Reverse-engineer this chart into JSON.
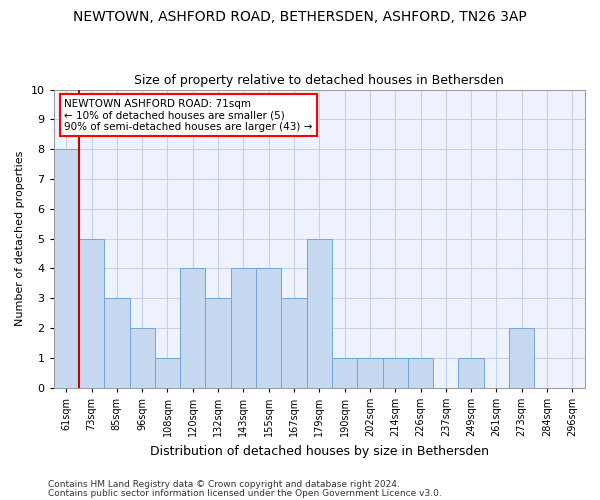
{
  "title": "NEWTOWN, ASHFORD ROAD, BETHERSDEN, ASHFORD, TN26 3AP",
  "subtitle": "Size of property relative to detached houses in Bethersden",
  "xlabel": "Distribution of detached houses by size in Bethersden",
  "ylabel": "Number of detached properties",
  "categories": [
    "61sqm",
    "73sqm",
    "85sqm",
    "96sqm",
    "108sqm",
    "120sqm",
    "132sqm",
    "143sqm",
    "155sqm",
    "167sqm",
    "179sqm",
    "190sqm",
    "202sqm",
    "214sqm",
    "226sqm",
    "237sqm",
    "249sqm",
    "261sqm",
    "273sqm",
    "284sqm",
    "296sqm"
  ],
  "values": [
    8,
    5,
    3,
    2,
    1,
    4,
    3,
    4,
    4,
    3,
    5,
    1,
    1,
    1,
    1,
    0,
    1,
    0,
    2,
    0,
    0
  ],
  "bar_color": "#c5d8f0",
  "bar_edge_color": "#6fa8d4",
  "highlight_color": "#cc0000",
  "ylim": [
    0,
    10
  ],
  "yticks": [
    0,
    1,
    2,
    3,
    4,
    5,
    6,
    7,
    8,
    9,
    10
  ],
  "annotation_title": "NEWTOWN ASHFORD ROAD: 71sqm",
  "annotation_line1": "← 10% of detached houses are smaller (5)",
  "annotation_line2": "90% of semi-detached houses are larger (43) →",
  "footer1": "Contains HM Land Registry data © Crown copyright and database right 2024.",
  "footer2": "Contains public sector information licensed under the Open Government Licence v3.0.",
  "bg_color": "#eef2fc",
  "grid_color": "#c8cfe8",
  "title_fontsize": 10,
  "subtitle_fontsize": 9,
  "xlabel_fontsize": 9,
  "ylabel_fontsize": 8,
  "tick_fontsize": 7,
  "annotation_fontsize": 7.5,
  "footer_fontsize": 6.5
}
